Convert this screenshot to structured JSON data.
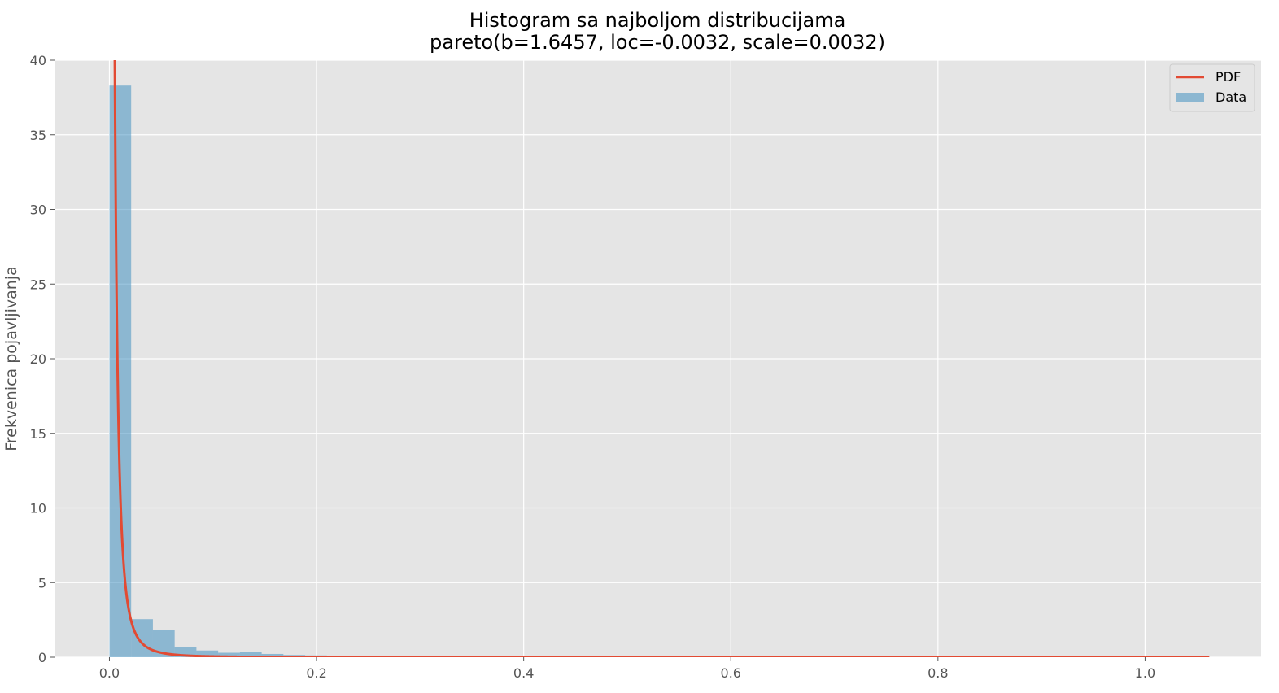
{
  "chart_data": {
    "type": "bar",
    "title": "Histogram sa najboljom distribucijama",
    "subtitle": "pareto(b=1.6457, loc=-0.0032, scale=0.0032)",
    "xlabel": "",
    "ylabel": "Frekvenica pojavljivanja",
    "xlim": [
      -0.053,
      1.112
    ],
    "ylim": [
      0,
      40
    ],
    "x_ticks": [
      "0.0",
      "0.2",
      "0.4",
      "0.6",
      "0.8",
      "1.0"
    ],
    "y_ticks": [
      "0",
      "5",
      "10",
      "15",
      "20",
      "25",
      "30",
      "35",
      "40"
    ],
    "grid": true,
    "legend_position": "top-right",
    "histogram": {
      "name": "Data",
      "color": "#348ABD",
      "opacity": 0.5,
      "bin_edges": [
        0.0,
        0.021,
        0.042,
        0.063,
        0.084,
        0.105,
        0.126,
        0.147,
        0.168,
        0.189,
        0.21,
        0.231
      ],
      "values": [
        38.3,
        2.55,
        1.85,
        0.7,
        0.45,
        0.3,
        0.35,
        0.22,
        0.15,
        0.12,
        0.1
      ]
    },
    "pdf": {
      "name": "PDF",
      "color": "#E24A33",
      "distribution": "pareto",
      "b": 1.6457,
      "loc": -0.0032,
      "scale": 0.0032,
      "x_range": [
        0.0,
        1.062
      ]
    }
  }
}
